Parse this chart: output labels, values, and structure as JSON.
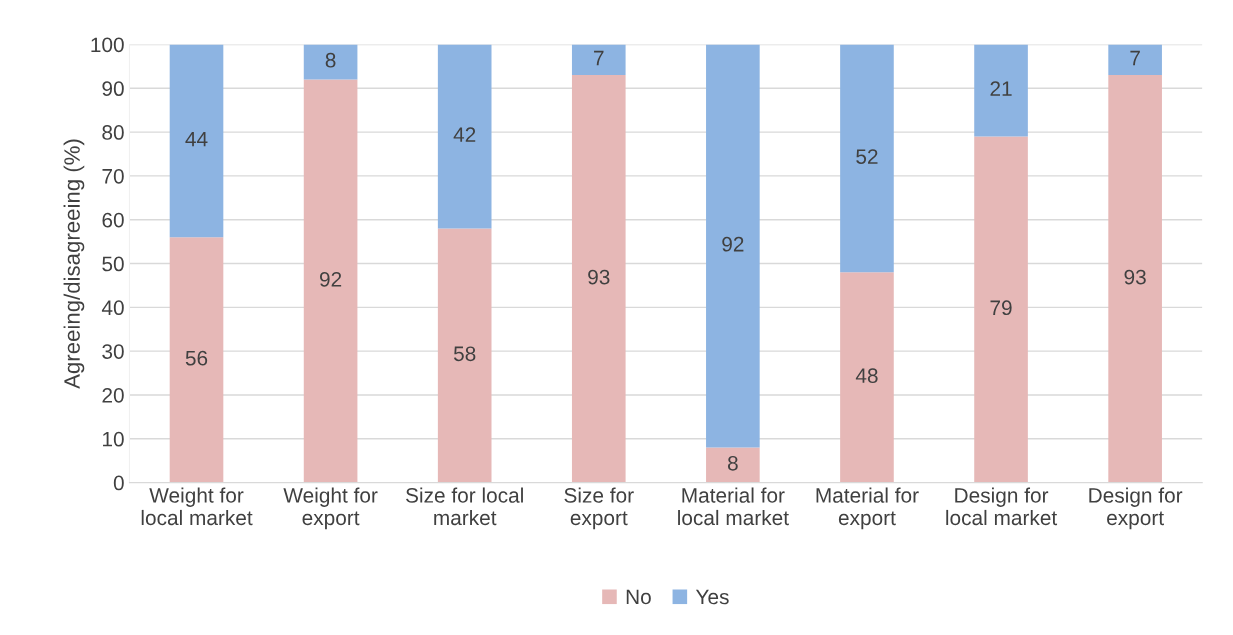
{
  "chart_data": {
    "type": "bar",
    "stacked": true,
    "ylabel": "Agreeing/disagreeing (%)",
    "categories": [
      "Weight for\nlocal market",
      "Weight for\nexport",
      "Size for local\nmarket",
      "Size for\nexport",
      "Material for\nlocal market",
      "Material for\nexport",
      "Design for\nlocal market",
      "Design for\nexport"
    ],
    "series": [
      {
        "name": "No",
        "color": "#e6b8b7",
        "values": [
          56,
          92,
          58,
          93,
          8,
          48,
          79,
          93
        ]
      },
      {
        "name": "Yes",
        "color": "#8db4e2",
        "values": [
          44,
          8,
          42,
          7,
          92,
          52,
          21,
          7
        ]
      }
    ],
    "ylim": [
      0,
      100
    ],
    "yticks": [
      0,
      10,
      20,
      30,
      40,
      50,
      60,
      70,
      80,
      90,
      100
    ],
    "grid": "y",
    "legend": "bottom",
    "data_labels": true
  }
}
